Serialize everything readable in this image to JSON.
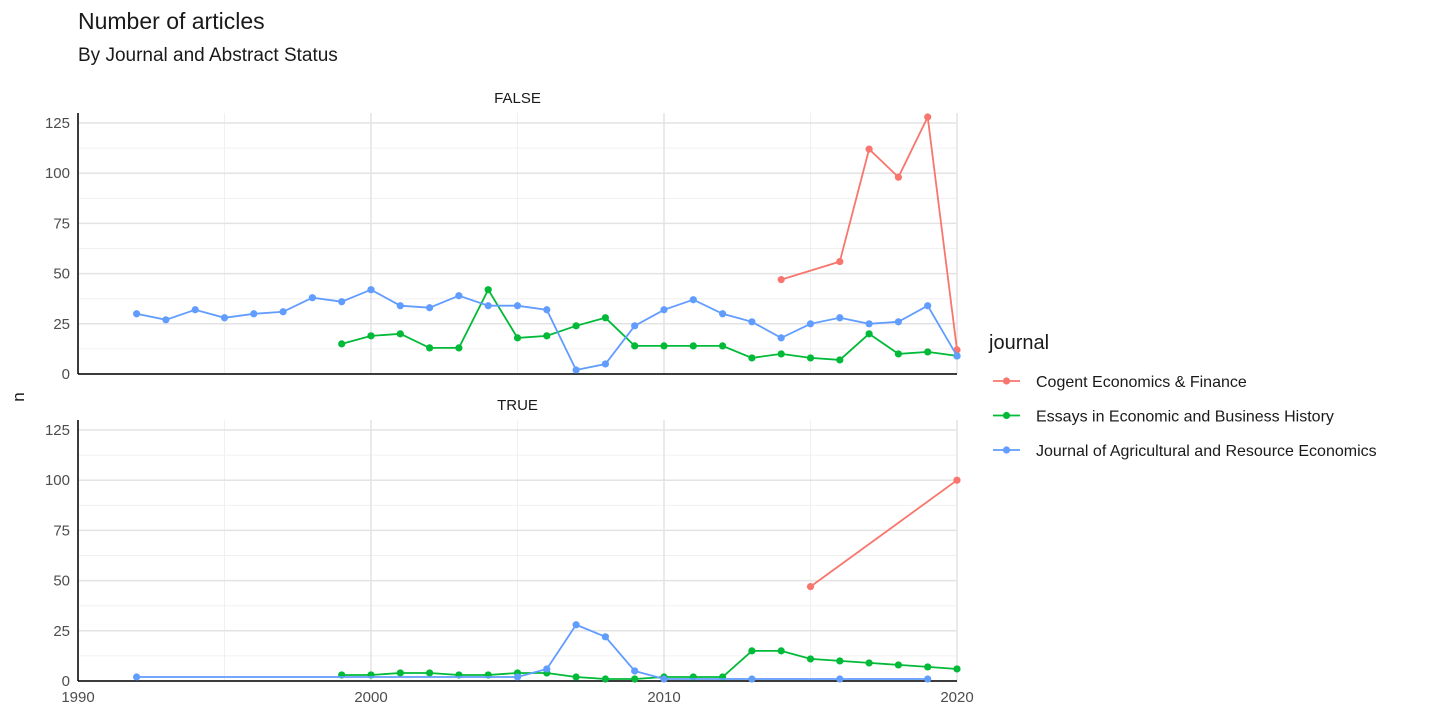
{
  "chart_data": {
    "type": "line",
    "title": "Number of articles",
    "subtitle": "By Journal and Abstract Status",
    "xlabel": "",
    "ylabel": "n",
    "xlim": [
      1990,
      2020
    ],
    "ylim": [
      0,
      130
    ],
    "x_ticks": [
      1990,
      2000,
      2010,
      2020
    ],
    "y_ticks": [
      0,
      25,
      50,
      75,
      100,
      125
    ],
    "grid": true,
    "legend": {
      "title": "journal",
      "position": "right",
      "entries": [
        {
          "name": "Cogent Economics & Finance",
          "color": "#F8766D"
        },
        {
          "name": "Essays in Economic and Business History",
          "color": "#00BA38"
        },
        {
          "name": "Journal of Agricultural and Resource Economics",
          "color": "#619CFF"
        }
      ]
    },
    "panels": [
      {
        "label": "FALSE",
        "series": [
          {
            "name": "Cogent Economics & Finance",
            "color": "#F8766D",
            "x": [
              2014,
              2016,
              2017,
              2018,
              2019,
              2020
            ],
            "y": [
              47,
              56,
              112,
              98,
              128,
              12
            ]
          },
          {
            "name": "Essays in Economic and Business History",
            "color": "#00BA38",
            "x": [
              1999,
              2000,
              2001,
              2002,
              2003,
              2004,
              2005,
              2006,
              2007,
              2008,
              2009,
              2010,
              2011,
              2012,
              2013,
              2014,
              2015,
              2016,
              2017,
              2018,
              2019,
              2020
            ],
            "y": [
              15,
              19,
              20,
              13,
              13,
              42,
              18,
              19,
              24,
              28,
              14,
              14,
              14,
              14,
              8,
              10,
              8,
              7,
              20,
              10,
              11,
              9
            ]
          },
          {
            "name": "Journal of Agricultural and Resource Economics",
            "color": "#619CFF",
            "x": [
              1992,
              1993,
              1994,
              1995,
              1996,
              1997,
              1998,
              1999,
              2000,
              2001,
              2002,
              2003,
              2004,
              2005,
              2006,
              2007,
              2008,
              2009,
              2010,
              2011,
              2012,
              2013,
              2014,
              2015,
              2016,
              2017,
              2018,
              2019,
              2020
            ],
            "y": [
              30,
              27,
              32,
              28,
              30,
              31,
              38,
              36,
              42,
              34,
              33,
              39,
              34,
              34,
              32,
              2,
              5,
              24,
              32,
              37,
              30,
              26,
              18,
              25,
              28,
              25,
              26,
              34,
              9
            ]
          }
        ]
      },
      {
        "label": "TRUE",
        "series": [
          {
            "name": "Cogent Economics & Finance",
            "color": "#F8766D",
            "x": [
              2015,
              2020
            ],
            "y": [
              47,
              100
            ]
          },
          {
            "name": "Essays in Economic and Business History",
            "color": "#00BA38",
            "x": [
              1999,
              2000,
              2001,
              2002,
              2003,
              2004,
              2005,
              2006,
              2007,
              2008,
              2009,
              2010,
              2011,
              2012,
              2013,
              2014,
              2015,
              2016,
              2017,
              2018,
              2019,
              2020
            ],
            "y": [
              3,
              3,
              4,
              4,
              3,
              3,
              4,
              4,
              2,
              1,
              1,
              2,
              2,
              2,
              15,
              15,
              11,
              10,
              9,
              8,
              7,
              6
            ]
          },
          {
            "name": "Journal of Agricultural and Resource Economics",
            "color": "#619CFF",
            "x": [
              1992,
              2005,
              2006,
              2007,
              2008,
              2009,
              2010,
              2013,
              2016,
              2019
            ],
            "y": [
              2,
              2,
              6,
              28,
              22,
              5,
              1,
              1,
              1,
              1
            ]
          }
        ]
      }
    ]
  }
}
